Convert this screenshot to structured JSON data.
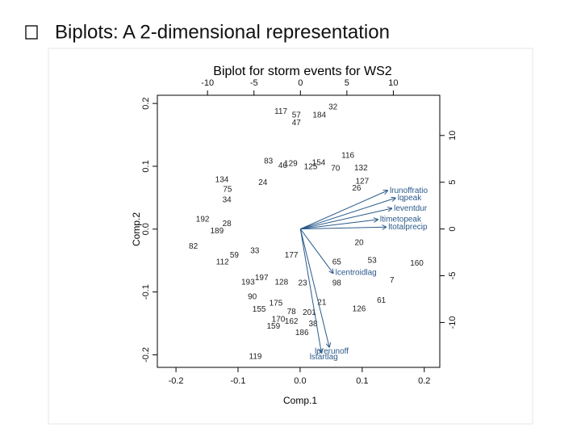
{
  "slide_title": "Biplots:  A 2-dimensional representation",
  "chart_data": {
    "type": "biplot",
    "title": "Biplot for storm events for WS2",
    "xlabel": "Comp.1",
    "ylabel": "Comp.2",
    "xlim": [
      -0.23,
      0.225
    ],
    "ylim": [
      -0.22,
      0.213
    ],
    "xticks": [
      -0.2,
      -0.1,
      {
        "value": 0,
        "label": "0.0"
      },
      0.1,
      0.2
    ],
    "yticks": [
      -0.2,
      -0.1,
      {
        "value": 0,
        "label": "0.0"
      },
      0.1,
      0.2
    ],
    "x2lim": [
      -15.4,
      15.0
    ],
    "y2lim": [
      -14.8,
      14.3
    ],
    "x2ticks": [
      -10,
      -5,
      0,
      5,
      10
    ],
    "y2ticks": [
      -10,
      -5,
      0,
      5,
      10
    ],
    "point_color": "#222222",
    "arrow_color": "#2a5a8a",
    "points": {
      "labels": [
        "117",
        "57",
        "47",
        "184",
        "32",
        "83",
        "46",
        "129",
        "154",
        "116",
        "132",
        "70",
        "125",
        "134",
        "24",
        "127",
        "26",
        "75",
        "34",
        "192",
        "28",
        "189",
        "20",
        "82",
        "59",
        "112",
        "33",
        "177",
        "160",
        "53",
        "7",
        "193",
        "197",
        "128",
        "23",
        "90",
        "175",
        "155",
        "61",
        "126",
        "21",
        "78",
        "201",
        "170",
        "162",
        "38",
        "159",
        "186",
        "119",
        "65",
        "98"
      ],
      "x": [
        -0.031,
        -0.006,
        -0.006,
        0.031,
        0.053,
        -0.051,
        -0.028,
        -0.015,
        0.03,
        0.077,
        0.098,
        0.057,
        0.017,
        -0.126,
        -0.06,
        0.1,
        0.091,
        -0.117,
        -0.118,
        -0.157,
        -0.118,
        -0.134,
        0.095,
        -0.172,
        -0.106,
        -0.125,
        -0.073,
        -0.014,
        0.188,
        0.116,
        0.148,
        -0.084,
        -0.062,
        -0.03,
        0.004,
        -0.077,
        -0.039,
        -0.066,
        0.131,
        0.095,
        0.035,
        -0.014,
        0.015,
        -0.035,
        -0.014,
        0.021,
        -0.043,
        0.003,
        -0.072,
        0.059,
        0.059
      ],
      "y": [
        0.187,
        0.181,
        0.169,
        0.181,
        0.194,
        0.108,
        0.101,
        0.104,
        0.105,
        0.117,
        0.097,
        0.096,
        0.099,
        0.078,
        0.074,
        0.076,
        0.065,
        0.063,
        0.046,
        0.015,
        0.008,
        -0.003,
        -0.022,
        -0.028,
        -0.042,
        -0.053,
        -0.035,
        -0.042,
        -0.055,
        -0.05,
        -0.082,
        -0.085,
        -0.078,
        -0.085,
        -0.086,
        -0.108,
        -0.118,
        -0.128,
        -0.114,
        -0.127,
        -0.117,
        -0.132,
        -0.133,
        -0.144,
        -0.147,
        -0.151,
        -0.155,
        -0.165,
        -0.203,
        -0.053,
        -0.086
      ]
    },
    "arrows": [
      {
        "name": "lrunoffratio",
        "x": 9.35,
        "y": 4.1
      },
      {
        "name": "lqpeak",
        "x": 10.2,
        "y": 3.3
      },
      {
        "name": "leventdur",
        "x": 9.8,
        "y": 2.2
      },
      {
        "name": "ltimetopeak",
        "x": 8.3,
        "y": 1.0
      },
      {
        "name": "ltotalprecip",
        "x": 9.2,
        "y": 0.2
      },
      {
        "name": "lcentroidlag",
        "x": 3.5,
        "y": -4.7
      },
      {
        "name": "lprerunoff",
        "x": 3.1,
        "y": -12.6
      },
      {
        "name": "lstartlag",
        "x": 2.25,
        "y": -13.2
      }
    ]
  }
}
